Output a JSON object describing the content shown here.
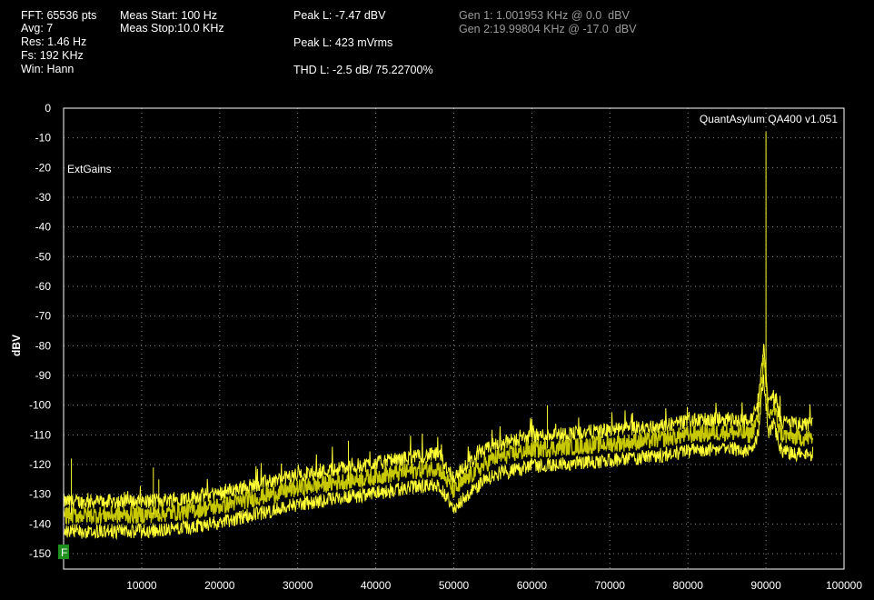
{
  "header": {
    "fft": "FFT: 65536 pts",
    "avg": "Avg: 7",
    "res": "Res: 1.46 Hz",
    "fs": "Fs: 192 KHz",
    "win": "Win: Hann",
    "meas_start": "Meas Start: 100 Hz",
    "meas_stop": "Meas Stop:10.0 KHz",
    "peak_dbv": "Peak L: -7.47 dBV",
    "peak_mvrms": "Peak L: 423 mVrms",
    "thd": "THD L: -2.5 dB/ 75.22700%",
    "gen1": "Gen 1: 1.001953 KHz @ 0.0  dBV",
    "gen2": "Gen 2:19.99804 KHz @ -17.0  dBV"
  },
  "plot_text": {
    "watermark": "QuantAsylum QA400 v1.051",
    "extgains": "ExtGains",
    "f_marker": "F"
  },
  "colors": {
    "trace": "#ffff33",
    "trace_dim": "#c8c800",
    "grid": "#8a8a8a",
    "frame": "#ffffff",
    "marker": "#1f8f1f"
  },
  "chart_data": {
    "type": "line",
    "title": "",
    "xlabel": "",
    "ylabel": "dBV",
    "xlim": [
      0,
      100000
    ],
    "ylim": [
      -155,
      0
    ],
    "x_ticks": [
      10000,
      20000,
      30000,
      40000,
      50000,
      60000,
      70000,
      80000,
      90000,
      100000
    ],
    "y_ticks": [
      0,
      -10,
      -20,
      -30,
      -40,
      -50,
      -60,
      -70,
      -80,
      -90,
      -100,
      -110,
      -120,
      -130,
      -140,
      -150
    ],
    "grid": true,
    "series": [
      {
        "x": [
          0,
          5000,
          10000,
          15000,
          20000,
          25000,
          30000,
          35000,
          40000,
          45000,
          48000,
          50000,
          52000,
          55000,
          60000,
          65000,
          70000,
          75000,
          80000,
          85000,
          88000,
          89000,
          89700,
          90300,
          91000,
          92000,
          94000,
          96000
        ],
        "y": [
          -137,
          -137,
          -137,
          -136,
          -134,
          -131,
          -128,
          -126,
          -124,
          -122,
          -121,
          -129,
          -124,
          -118,
          -115,
          -114,
          -113,
          -112,
          -110,
          -109,
          -110,
          -104,
          -84,
          -104,
          -101,
          -110,
          -111,
          -111
        ]
      }
    ],
    "peaks": [
      {
        "x": 90000,
        "y": -8
      },
      {
        "x": 89000,
        "y": -96
      },
      {
        "x": 91000,
        "y": -98
      },
      {
        "x": 62000,
        "y": -100
      },
      {
        "x": 11500,
        "y": -121
      },
      {
        "x": 12200,
        "y": -125
      },
      {
        "x": 36500,
        "y": -112
      },
      {
        "x": 1000,
        "y": -118
      }
    ]
  }
}
